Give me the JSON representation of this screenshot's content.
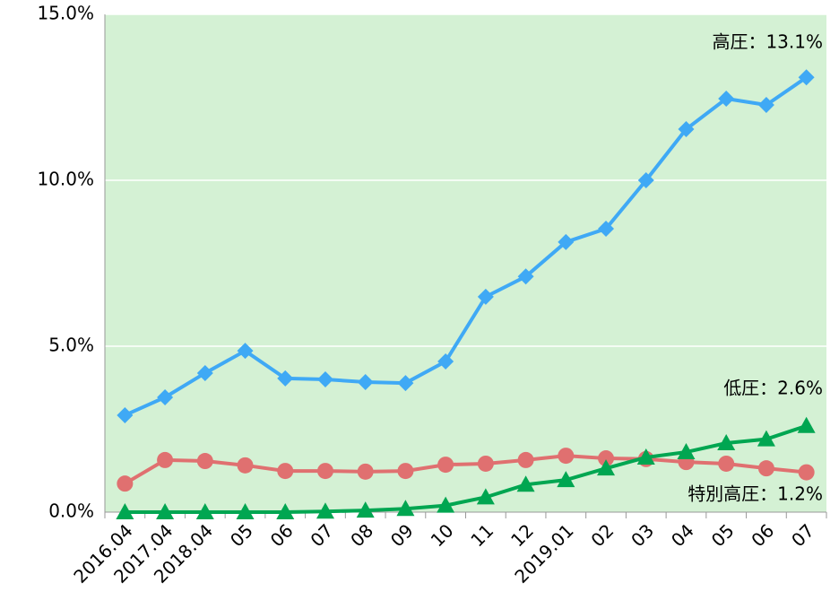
{
  "chart_data": {
    "type": "line",
    "categories": [
      "2016.04",
      "2017.04",
      "2018.04",
      "05",
      "06",
      "07",
      "08",
      "09",
      "10",
      "11",
      "12",
      "2019.01",
      "02",
      "03",
      "04",
      "05",
      "06",
      "07"
    ],
    "series": [
      {
        "color": "#3fa9f5",
        "marker": "diamond",
        "values": [
          2.92,
          3.46,
          4.19,
          4.86,
          4.03,
          4.0,
          3.92,
          3.89,
          4.54,
          6.49,
          7.1,
          8.14,
          8.54,
          10.0,
          11.54,
          12.46,
          12.27,
          13.1
        ]
      },
      {
        "color": "#e07070",
        "marker": "circle",
        "values": [
          0.86,
          1.57,
          1.54,
          1.41,
          1.24,
          1.24,
          1.22,
          1.24,
          1.43,
          1.46,
          1.57,
          1.7,
          1.62,
          1.6,
          1.51,
          1.46,
          1.32,
          1.2
        ]
      },
      {
        "color": "#00a651",
        "marker": "triangle",
        "values": [
          0,
          0,
          0,
          0,
          0,
          0.02,
          0.05,
          0.1,
          0.2,
          0.45,
          0.83,
          0.97,
          1.32,
          1.65,
          1.81,
          2.08,
          2.2,
          2.6
        ]
      }
    ],
    "annotations": [
      "高圧：13.1%",
      "低圧：2.6%",
      "特別高圧：1.2%"
    ],
    "ylim": [
      0,
      15
    ],
    "yticks": [
      {
        "value": 0,
        "label": "0.0%"
      },
      {
        "value": 5,
        "label": "5.0%"
      },
      {
        "value": 10,
        "label": "10.0%"
      },
      {
        "value": 15,
        "label": "15.0%"
      }
    ],
    "grid": true,
    "background": "#d4f1d4"
  }
}
